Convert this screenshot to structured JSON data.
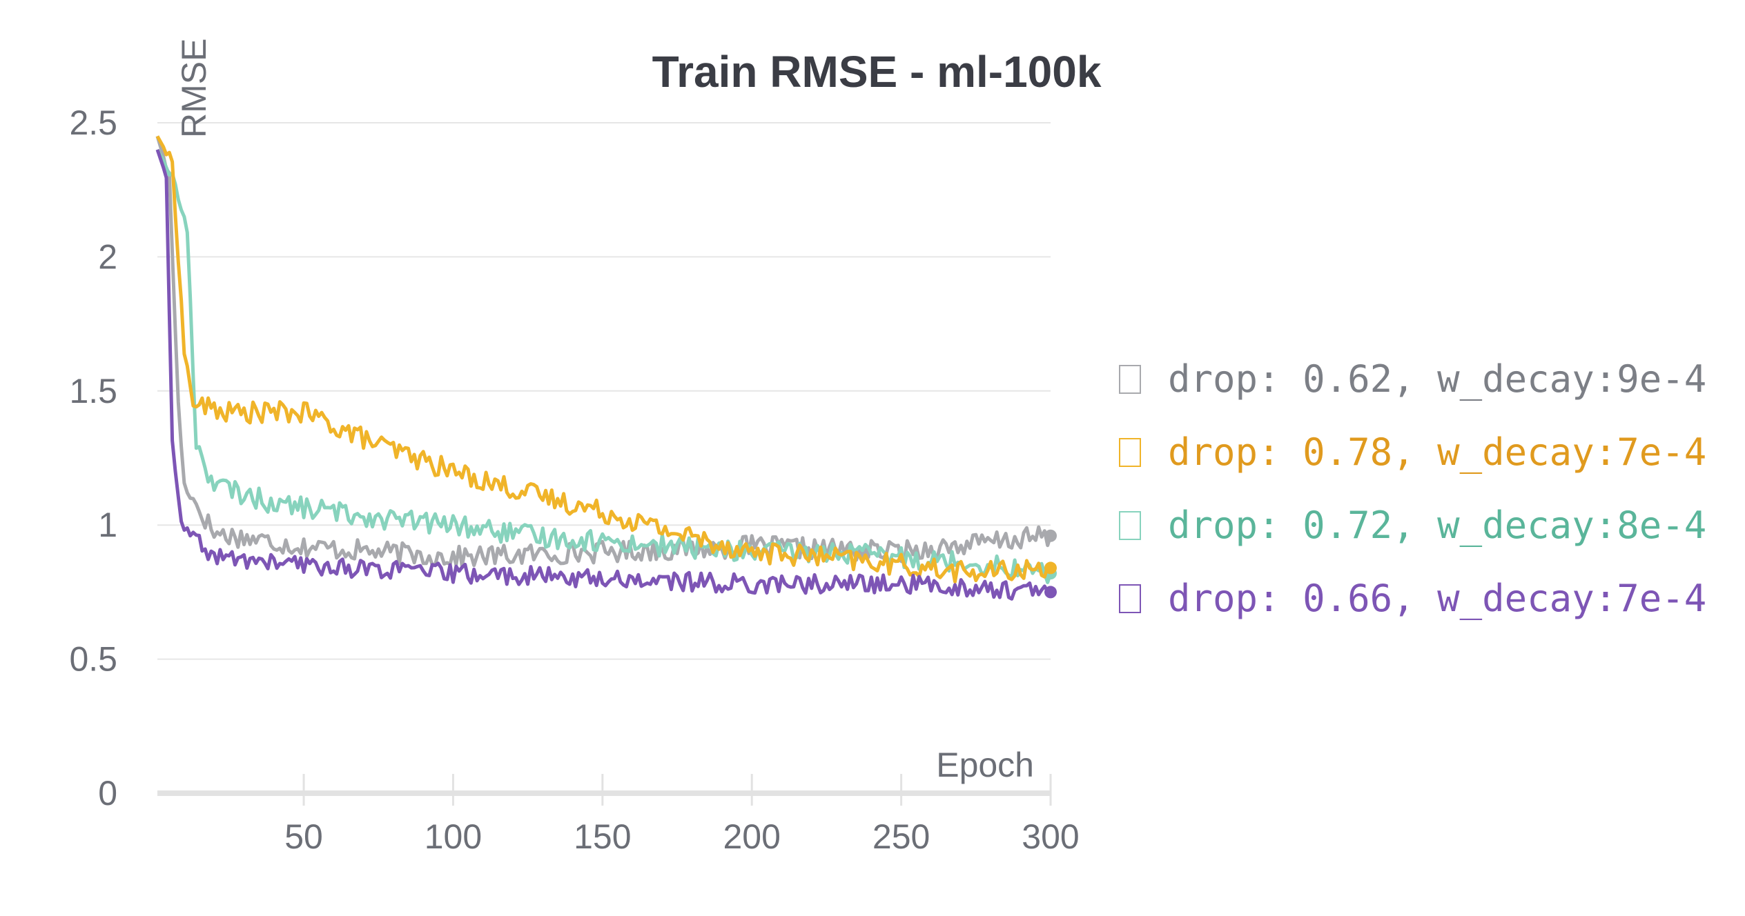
{
  "chart_data": {
    "type": "line",
    "title": "Train RMSE - ml-100k",
    "xlabel": "Epoch",
    "ylabel": "RMSE",
    "xlim": [
      1,
      300
    ],
    "ylim": [
      0,
      2.5
    ],
    "x_ticks": [
      50,
      100,
      150,
      200,
      250,
      300
    ],
    "y_ticks": [
      0,
      0.5,
      1,
      1.5,
      2,
      2.5
    ],
    "y_tick_labels": [
      "0",
      "0.5",
      "1",
      "1.5",
      "2",
      "2.5"
    ],
    "grid": true,
    "legend_position": "right",
    "series": [
      {
        "name": "drop: 0.62, w_decay:9e-4",
        "color": "#a8a9ad",
        "legend_color": "#7c7f86",
        "keypoints": [
          [
            1,
            2.45
          ],
          [
            5,
            2.3
          ],
          [
            8,
            1.45
          ],
          [
            10,
            1.15
          ],
          [
            20,
            0.97
          ],
          [
            50,
            0.92
          ],
          [
            100,
            0.88
          ],
          [
            150,
            0.9
          ],
          [
            200,
            0.92
          ],
          [
            250,
            0.9
          ],
          [
            300,
            0.96
          ]
        ],
        "noise": 0.04
      },
      {
        "name": "drop: 0.78, w_decay:7e-4",
        "color": "#f0b429",
        "legend_color": "#e09a1e",
        "keypoints": [
          [
            1,
            2.45
          ],
          [
            6,
            2.35
          ],
          [
            10,
            1.65
          ],
          [
            13,
            1.45
          ],
          [
            25,
            1.42
          ],
          [
            50,
            1.42
          ],
          [
            75,
            1.3
          ],
          [
            100,
            1.2
          ],
          [
            125,
            1.12
          ],
          [
            150,
            1.05
          ],
          [
            175,
            0.97
          ],
          [
            200,
            0.9
          ],
          [
            225,
            0.88
          ],
          [
            250,
            0.85
          ],
          [
            275,
            0.82
          ],
          [
            300,
            0.84
          ]
        ],
        "noise": 0.04
      },
      {
        "name": "drop: 0.72, w_decay:8e-4",
        "color": "#87d3bd",
        "legend_color": "#5ab59a",
        "keypoints": [
          [
            1,
            2.4
          ],
          [
            6,
            2.3
          ],
          [
            11,
            2.1
          ],
          [
            14,
            1.3
          ],
          [
            20,
            1.15
          ],
          [
            40,
            1.08
          ],
          [
            60,
            1.05
          ],
          [
            80,
            1.02
          ],
          [
            100,
            1.0
          ],
          [
            125,
            0.96
          ],
          [
            150,
            0.94
          ],
          [
            175,
            0.92
          ],
          [
            200,
            0.9
          ],
          [
            225,
            0.9
          ],
          [
            250,
            0.88
          ],
          [
            275,
            0.86
          ],
          [
            300,
            0.82
          ]
        ],
        "noise": 0.04
      },
      {
        "name": "drop: 0.66, w_decay:7e-4",
        "color": "#7d55b5",
        "legend_color": "#7d55b5",
        "keypoints": [
          [
            1,
            2.4
          ],
          [
            4,
            2.3
          ],
          [
            6,
            1.3
          ],
          [
            9,
            1.0
          ],
          [
            20,
            0.88
          ],
          [
            50,
            0.85
          ],
          [
            100,
            0.82
          ],
          [
            150,
            0.8
          ],
          [
            200,
            0.78
          ],
          [
            250,
            0.78
          ],
          [
            300,
            0.75
          ]
        ],
        "noise": 0.035
      }
    ]
  }
}
